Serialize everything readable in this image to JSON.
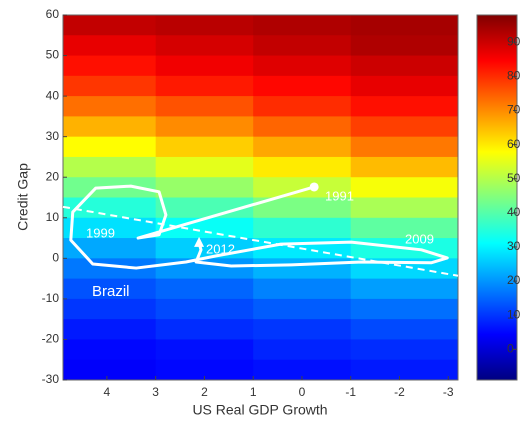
{
  "chart_data": {
    "type": "heatmap",
    "xlabel": "US Real GDP Growth",
    "ylabel": "Credit Gap",
    "xlim": [
      4.9,
      -3.2
    ],
    "xticks": [
      4,
      3,
      2,
      1,
      0,
      -1,
      -2,
      -3
    ],
    "ylim": [
      -30,
      60
    ],
    "yticks": [
      -30,
      -20,
      -10,
      0,
      10,
      20,
      30,
      40,
      50,
      60
    ],
    "x_edges": [
      4.9,
      3,
      1,
      -1,
      -3.2
    ],
    "y_edges": [
      60,
      55,
      50,
      45,
      40,
      35,
      30,
      25,
      20,
      15,
      10,
      5,
      0,
      -5,
      -10,
      -15,
      -20,
      -25,
      -30
    ],
    "z": [
      [
        91,
        92,
        93,
        94
      ],
      [
        87,
        89,
        91,
        93
      ],
      [
        83,
        86,
        88,
        90
      ],
      [
        79,
        82,
        84,
        87
      ],
      [
        73,
        76,
        80,
        83
      ],
      [
        66,
        70,
        74,
        78
      ],
      [
        58,
        63,
        67,
        72
      ],
      [
        50,
        55,
        60,
        65
      ],
      [
        43,
        47,
        52,
        57
      ],
      [
        35,
        39,
        44,
        49
      ],
      [
        28,
        32,
        36,
        41
      ],
      [
        22,
        26,
        29,
        34
      ],
      [
        17,
        20,
        23,
        27
      ],
      [
        13,
        15,
        18,
        21
      ],
      [
        10,
        12,
        14,
        16
      ],
      [
        7,
        9,
        10,
        12
      ],
      [
        5,
        6,
        8,
        9
      ],
      [
        4,
        5,
        6,
        7
      ]
    ],
    "colorbar_lim": [
      -9,
      98
    ],
    "colorbar_ticks": [
      0,
      10,
      20,
      30,
      40,
      50,
      60,
      70,
      80,
      90
    ],
    "threshold_line": {
      "x": [
        4.9,
        -3.2
      ],
      "y": [
        12.7,
        -4.3
      ]
    },
    "series": [
      {
        "name": "Brazil",
        "color": "#ffffff",
        "x": [
          -0.25,
          3.36,
          2.93,
          2.79,
          2.93,
          3.51,
          4.23,
          4.7,
          4.74,
          4.29,
          3.4,
          2.38,
          1.76,
          0.43,
          -1.01,
          -2.45,
          -2.98,
          -2.65,
          -1.22,
          0.22,
          1.45,
          2.17,
          2.07,
          2.11
        ],
        "values": [
          17.6,
          5.0,
          5.8,
          10.7,
          16.4,
          17.8,
          17.3,
          11.4,
          4.5,
          -1.4,
          -2.4,
          -0.9,
          0.6,
          3.5,
          4.0,
          2.1,
          0.1,
          -1.1,
          -0.9,
          -1.6,
          -1.9,
          -0.9,
          2.1,
          3.8
        ]
      }
    ],
    "annotations": [
      "1991",
      "1999",
      "2009",
      "2012"
    ]
  }
}
